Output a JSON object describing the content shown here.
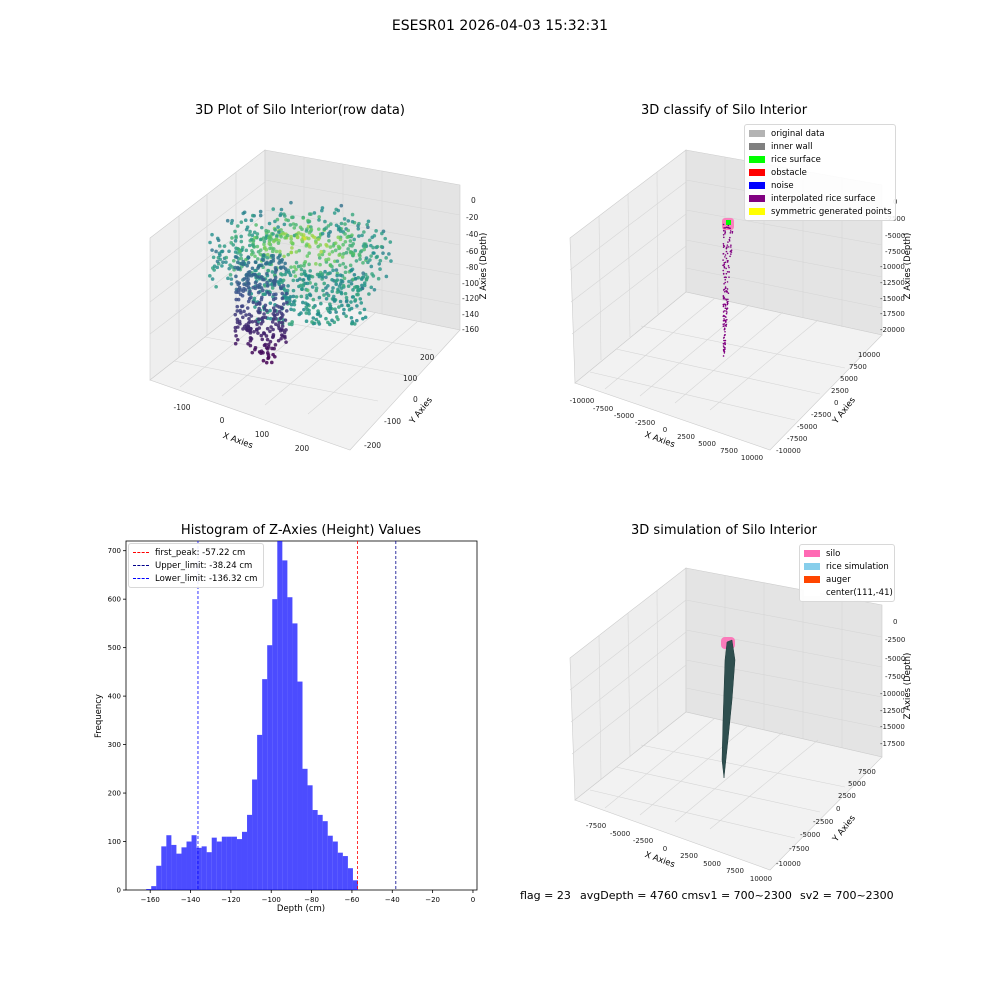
{
  "figure_title": "ESESR01 2026-04-03 15:32:31",
  "status": {
    "flag": "flag = 23",
    "avg": "avgDepth = 4760 cmsv1 = 700~2300",
    "sv2": "sv2 = 700~2300"
  },
  "chart_data": [
    {
      "type": "scatter",
      "projection": "3d",
      "title": "3D Plot of Silo Interior(row data)",
      "xlabel": "X Axies",
      "ylabel": "Y Axies",
      "zlabel": "Z Axies (Depth)",
      "x_ticks": [
        "-100",
        "0",
        "100",
        "200"
      ],
      "y_ticks": [
        "-200",
        "-100",
        "0",
        "100",
        "200"
      ],
      "z_ticks": [
        "0",
        "-20",
        "-40",
        "-60",
        "-80",
        "-100",
        "-120",
        "-140",
        "-160"
      ],
      "zlim": [
        -170,
        0
      ],
      "colormap": "viridis",
      "grid": true
    },
    {
      "type": "scatter",
      "projection": "3d",
      "title": "3D classify of Silo Interior",
      "xlabel": "X Axies",
      "ylabel": "Y Axies",
      "zlabel": "Z Axies (Depth)",
      "x_ticks": [
        "-10000",
        "-7500",
        "-5000",
        "-2500",
        "0",
        "2500",
        "5000",
        "7500",
        "10000"
      ],
      "y_ticks": [
        "-10000",
        "-7500",
        "-5000",
        "-2500",
        "0",
        "2500",
        "5000",
        "7500",
        "10000"
      ],
      "z_ticks": [
        "0",
        "-2500",
        "-5000",
        "-7500",
        "-10000",
        "-12500",
        "-15000",
        "-17500",
        "-20000"
      ],
      "legend_position": "top-right",
      "legend": [
        {
          "label": "original data",
          "color": "#b3b3b3"
        },
        {
          "label": "inner wall",
          "color": "#808080"
        },
        {
          "label": "rice surface",
          "color": "#00ff00"
        },
        {
          "label": "obstacle",
          "color": "#ff0000"
        },
        {
          "label": "noise",
          "color": "#0000ff"
        },
        {
          "label": "interpolated rice surface",
          "color": "#800080"
        },
        {
          "label": "symmetric generated points",
          "color": "#ffff00"
        }
      ],
      "grid": true
    },
    {
      "type": "bar",
      "title": "Histogram of Z-Axies (Height) Values",
      "xlabel": "Depth (cm)",
      "ylabel": "Frequency",
      "xlim": [
        -172,
        2
      ],
      "ylim": [
        0,
        720
      ],
      "x_ticks": [
        -160,
        -140,
        -120,
        -100,
        -80,
        -60,
        -40,
        -20,
        0
      ],
      "y_ticks": [
        0,
        100,
        200,
        300,
        400,
        500,
        600,
        700
      ],
      "bin_start": -162,
      "bin_width": 2.5,
      "values": [
        2,
        8,
        50,
        90,
        113,
        93,
        75,
        88,
        100,
        113,
        87,
        90,
        78,
        108,
        100,
        110,
        110,
        110,
        105,
        120,
        155,
        228,
        320,
        435,
        505,
        600,
        720,
        680,
        604,
        550,
        430,
        250,
        216,
        165,
        155,
        142,
        112,
        100,
        77,
        70,
        45,
        20
      ],
      "color": "#0000ff",
      "vlines": [
        {
          "label": "first_peak: -57.22 cm",
          "x": -57.22,
          "color": "#ff0000"
        },
        {
          "label": "Upper_limit: -38.24 cm",
          "x": -38.24,
          "color": "#00008b"
        },
        {
          "label": "Lower_limit: -136.32 cm",
          "x": -136.32,
          "color": "#0000ff"
        }
      ],
      "legend_position": "top-left"
    },
    {
      "type": "surface",
      "projection": "3d",
      "title": "3D simulation of Silo Interior",
      "xlabel": "X Axies",
      "ylabel": "Y Axies",
      "zlabel": "Z Axies (Depth)",
      "x_ticks": [
        "-7500",
        "-5000",
        "-2500",
        "0",
        "2500",
        "5000",
        "7500",
        "10000"
      ],
      "y_ticks": [
        "-10000",
        "-7500",
        "-5000",
        "-2500",
        "0",
        "2500",
        "5000",
        "7500"
      ],
      "z_ticks": [
        "0",
        "-2500",
        "-5000",
        "-7500",
        "-10000",
        "-12500",
        "-15000",
        "-17500"
      ],
      "legend_position": "top-right",
      "legend": [
        {
          "label": "silo",
          "color": "#ff69b4"
        },
        {
          "label": "rice simulation",
          "color": "#87ceeb"
        },
        {
          "label": "auger",
          "color": "#ff4500"
        },
        {
          "label": "center(111,-41)",
          "color": "#ffffff"
        }
      ],
      "grid": true
    }
  ]
}
